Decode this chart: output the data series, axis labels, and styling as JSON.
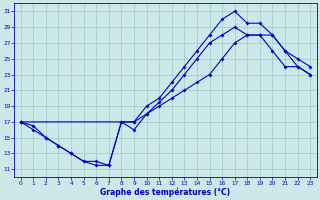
{
  "bg_color": "#cde8e8",
  "grid_color": "#a0c8c8",
  "line_color": "#0000cc",
  "xlabel": "Graphe des températures (°C)",
  "xlim": [
    -0.5,
    23.5
  ],
  "ylim": [
    10.0,
    32.0
  ],
  "xticks": [
    0,
    1,
    2,
    3,
    4,
    5,
    6,
    7,
    8,
    9,
    10,
    11,
    12,
    13,
    14,
    15,
    16,
    17,
    18,
    19,
    20,
    21,
    22,
    23
  ],
  "yticks": [
    11,
    13,
    15,
    17,
    19,
    21,
    23,
    25,
    27,
    29,
    31
  ],
  "curve1_x": [
    0,
    1,
    2,
    3,
    4,
    5,
    6,
    7,
    8,
    9,
    10,
    11,
    12,
    13,
    14,
    15,
    16,
    17,
    18,
    19,
    20,
    21,
    22,
    23
  ],
  "curve1_y": [
    17,
    16.5,
    15,
    14,
    13,
    12,
    12,
    11.5,
    17,
    17,
    19,
    20,
    22,
    24,
    26,
    28,
    30,
    31,
    29.5,
    29.5,
    28,
    26,
    25,
    24
  ],
  "curve2_x": [
    0,
    1,
    2,
    3,
    4,
    5,
    6,
    7,
    8,
    9,
    10,
    11,
    12,
    13,
    14,
    15,
    16,
    17,
    18,
    19,
    20,
    21,
    22,
    23
  ],
  "curve2_y": [
    17,
    16,
    15,
    14,
    13,
    12,
    11.5,
    11.5,
    17,
    16,
    18,
    19.5,
    21,
    23,
    25,
    27,
    28,
    29,
    28,
    28,
    26,
    24,
    24,
    23
  ],
  "curve3_x": [
    0,
    9,
    10,
    11,
    12,
    13,
    14,
    15,
    16,
    17,
    18,
    19,
    20,
    21,
    22,
    23
  ],
  "curve3_y": [
    17,
    17,
    18,
    19,
    20,
    21,
    22,
    23,
    25,
    27,
    28,
    28,
    28,
    26,
    24,
    23
  ]
}
